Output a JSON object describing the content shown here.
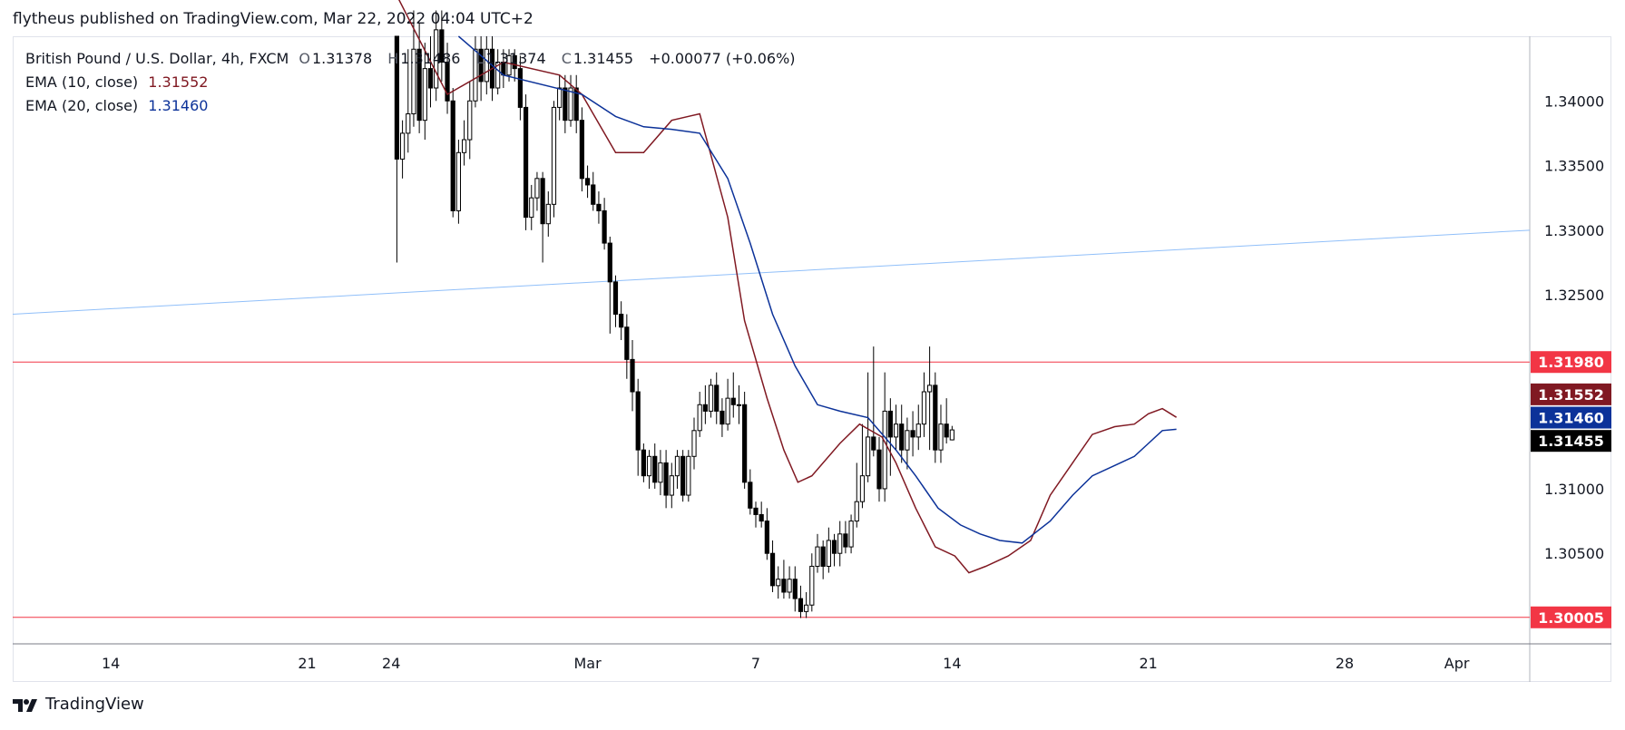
{
  "header": {
    "publisher_line": "flytheus published on TradingView.com, Mar 22, 2022 04:04 UTC+2"
  },
  "legend": {
    "symbol": "British Pound / U.S. Dollar, 4h, FXCM",
    "o_label": "O",
    "o_value": "1.31378",
    "h_label": "H",
    "h_value": "1.31486",
    "l_label": "L",
    "l_value": "1.31374",
    "c_label": "C",
    "c_value": "1.31455",
    "change": "+0.00077 (+0.06%)",
    "ema10_label": "EMA (10, close)",
    "ema10_value": "1.31552",
    "ema20_label": "EMA (20, close)",
    "ema20_value": "1.31460"
  },
  "footer": {
    "brand": "TradingView"
  },
  "colors": {
    "ema10": "#801922",
    "ema20": "#0c3299",
    "hline": "#f23645",
    "trendline": "#90bff9",
    "price_tag": "#000000"
  },
  "chart_data": {
    "type": "candlestick",
    "title": "British Pound / U.S. Dollar, 4h, FXCM",
    "ylim": [
      1.298,
      1.345
    ],
    "y_ticks": [
      "1.34000",
      "1.33500",
      "1.33000",
      "1.32500",
      "1.31000",
      "1.30500"
    ],
    "x_ticks": [
      {
        "label": "14",
        "day": -16
      },
      {
        "label": "21",
        "day": -9
      },
      {
        "label": "24",
        "day": -6
      },
      {
        "label": "Mar",
        "day": 1
      },
      {
        "label": "7",
        "day": 7
      },
      {
        "label": "14",
        "day": 14
      },
      {
        "label": "21",
        "day": 21
      },
      {
        "label": "28",
        "day": 28
      },
      {
        "label": "Apr",
        "day": 32
      }
    ],
    "xlim_days": [
      -19.5,
      34.6
    ],
    "horizontal_lines": [
      {
        "name": "resistance",
        "value": 1.3198,
        "label": "1.31980"
      },
      {
        "name": "support",
        "value": 1.30005,
        "label": "1.30005"
      }
    ],
    "trendline": {
      "start": {
        "day": -19.5,
        "value": 1.3235
      },
      "end": {
        "day": 34.6,
        "value": 1.33
      }
    },
    "price_tags": [
      {
        "name": "ema10-tag",
        "label": "1.31552",
        "color_key": "ema10"
      },
      {
        "name": "ema20-tag",
        "label": "1.31460",
        "color_key": "ema20"
      },
      {
        "name": "last-price-tag",
        "label": "1.31455",
        "color_key": "price_tag"
      }
    ],
    "series": [
      {
        "name": "EMA (10, close)",
        "values_by_day": [
          [
            -6.0,
            1.349
          ],
          [
            -4,
            1.3405
          ],
          [
            -2,
            1.343
          ],
          [
            0,
            1.342
          ],
          [
            0.8,
            1.3405
          ],
          [
            2,
            1.336
          ],
          [
            3,
            1.336
          ],
          [
            4,
            1.3385
          ],
          [
            5,
            1.339
          ],
          [
            6,
            1.331
          ],
          [
            6.6,
            1.323
          ],
          [
            7.4,
            1.317
          ],
          [
            8.0,
            1.313
          ],
          [
            8.5,
            1.3105
          ],
          [
            9,
            1.311
          ],
          [
            10,
            1.3135
          ],
          [
            10.7,
            1.315
          ],
          [
            11.5,
            1.314
          ],
          [
            12,
            1.312
          ],
          [
            12.7,
            1.3085
          ],
          [
            13.4,
            1.3055
          ],
          [
            14.1,
            1.3048
          ],
          [
            14.6,
            1.3035
          ],
          [
            15.2,
            1.304
          ],
          [
            16,
            1.3048
          ],
          [
            16.8,
            1.306
          ],
          [
            17.5,
            1.3095
          ],
          [
            18.3,
            1.312
          ],
          [
            19,
            1.3142
          ],
          [
            19.8,
            1.3148
          ],
          [
            20.5,
            1.315
          ],
          [
            21,
            1.3158
          ],
          [
            21.5,
            1.3162
          ],
          [
            22,
            1.31552
          ]
        ]
      },
      {
        "name": "EMA (20, close)",
        "values_by_day": [
          [
            -3.6,
            1.345
          ],
          [
            -2,
            1.342
          ],
          [
            0.8,
            1.3405
          ],
          [
            2,
            1.3388
          ],
          [
            3,
            1.338
          ],
          [
            4,
            1.3378
          ],
          [
            5,
            1.3375
          ],
          [
            6,
            1.334
          ],
          [
            6.8,
            1.329
          ],
          [
            7.6,
            1.3235
          ],
          [
            8.4,
            1.3195
          ],
          [
            9.2,
            1.3165
          ],
          [
            10,
            1.316
          ],
          [
            11,
            1.3155
          ],
          [
            12,
            1.313
          ],
          [
            12.7,
            1.311
          ],
          [
            13.5,
            1.3085
          ],
          [
            14.3,
            1.3072
          ],
          [
            15,
            1.3065
          ],
          [
            15.7,
            1.306
          ],
          [
            16.5,
            1.3058
          ],
          [
            17.5,
            1.3075
          ],
          [
            18.3,
            1.3095
          ],
          [
            19,
            1.311
          ],
          [
            19.8,
            1.3118
          ],
          [
            20.5,
            1.3125
          ],
          [
            21,
            1.3135
          ],
          [
            21.5,
            1.3145
          ],
          [
            22,
            1.3146
          ]
        ]
      }
    ],
    "candles": [
      [
        -5.8,
        1.345,
        1.3355,
        1.345,
        1.3275
      ],
      [
        -5.6,
        1.3355,
        1.3375,
        1.3385,
        1.334
      ],
      [
        -5.4,
        1.3375,
        1.339,
        1.344,
        1.336
      ],
      [
        -5.2,
        1.339,
        1.344,
        1.347,
        1.338
      ],
      [
        -5.0,
        1.344,
        1.3385,
        1.346,
        1.3375
      ],
      [
        -4.8,
        1.3385,
        1.3425,
        1.3445,
        1.337
      ],
      [
        -4.6,
        1.3425,
        1.341,
        1.345,
        1.3395
      ],
      [
        -4.4,
        1.341,
        1.3455,
        1.347,
        1.34
      ],
      [
        -4.2,
        1.3455,
        1.343,
        1.347,
        1.3415
      ],
      [
        -4.0,
        1.343,
        1.34,
        1.3445,
        1.339
      ],
      [
        -3.8,
        1.34,
        1.3315,
        1.341,
        1.331
      ],
      [
        -3.6,
        1.3315,
        1.336,
        1.337,
        1.3305
      ],
      [
        -3.4,
        1.336,
        1.337,
        1.3385,
        1.335
      ],
      [
        -3.2,
        1.337,
        1.34,
        1.3415,
        1.3355
      ],
      [
        -3.0,
        1.34,
        1.344,
        1.345,
        1.3395
      ],
      [
        -2.8,
        1.344,
        1.3415,
        1.345,
        1.34
      ],
      [
        -2.6,
        1.3415,
        1.344,
        1.345,
        1.3405
      ],
      [
        -2.4,
        1.344,
        1.341,
        1.345,
        1.34
      ],
      [
        -2.2,
        1.341,
        1.343,
        1.344,
        1.3405
      ],
      [
        -2.0,
        1.343,
        1.342,
        1.344,
        1.341
      ],
      [
        -1.8,
        1.342,
        1.3435,
        1.344,
        1.3415
      ],
      [
        -1.6,
        1.3435,
        1.3425,
        1.344,
        1.3415
      ],
      [
        -1.4,
        1.3425,
        1.3395,
        1.3435,
        1.3385
      ],
      [
        -1.2,
        1.3395,
        1.331,
        1.3405,
        1.33
      ],
      [
        -1.0,
        1.331,
        1.3325,
        1.3335,
        1.33
      ],
      [
        -0.8,
        1.3325,
        1.334,
        1.3345,
        1.3315
      ],
      [
        -0.6,
        1.334,
        1.3305,
        1.3345,
        1.3275
      ],
      [
        -0.4,
        1.3305,
        1.332,
        1.333,
        1.3295
      ],
      [
        -0.2,
        1.332,
        1.3395,
        1.34,
        1.331
      ],
      [
        0.0,
        1.3395,
        1.341,
        1.342,
        1.3385
      ],
      [
        0.2,
        1.341,
        1.3385,
        1.342,
        1.3375
      ],
      [
        0.4,
        1.3385,
        1.341,
        1.342,
        1.338
      ],
      [
        0.6,
        1.341,
        1.3385,
        1.342,
        1.3375
      ],
      [
        0.8,
        1.3385,
        1.334,
        1.3395,
        1.333
      ],
      [
        1.0,
        1.334,
        1.3335,
        1.335,
        1.3325
      ],
      [
        1.2,
        1.3335,
        1.332,
        1.3345,
        1.3315
      ],
      [
        1.4,
        1.332,
        1.3315,
        1.333,
        1.3305
      ],
      [
        1.6,
        1.3315,
        1.329,
        1.3325,
        1.3285
      ],
      [
        1.8,
        1.329,
        1.326,
        1.3295,
        1.322
      ],
      [
        2.0,
        1.326,
        1.3235,
        1.3265,
        1.3225
      ],
      [
        2.2,
        1.3235,
        1.3225,
        1.3245,
        1.3215
      ],
      [
        2.4,
        1.3225,
        1.32,
        1.3235,
        1.3185
      ],
      [
        2.6,
        1.32,
        1.3175,
        1.3215,
        1.316
      ],
      [
        2.8,
        1.3175,
        1.313,
        1.3185,
        1.311
      ],
      [
        3.0,
        1.313,
        1.311,
        1.3135,
        1.3105
      ],
      [
        3.2,
        1.311,
        1.3125,
        1.313,
        1.31
      ],
      [
        3.4,
        1.3125,
        1.3105,
        1.3135,
        1.31
      ],
      [
        3.6,
        1.3105,
        1.312,
        1.313,
        1.3095
      ],
      [
        3.8,
        1.312,
        1.3095,
        1.313,
        1.3085
      ],
      [
        4.0,
        1.3095,
        1.311,
        1.312,
        1.3085
      ],
      [
        4.2,
        1.311,
        1.3125,
        1.313,
        1.31
      ],
      [
        4.4,
        1.3125,
        1.3095,
        1.313,
        1.309
      ],
      [
        4.6,
        1.3095,
        1.3125,
        1.313,
        1.309
      ],
      [
        4.8,
        1.3125,
        1.3145,
        1.3155,
        1.3115
      ],
      [
        5.0,
        1.3145,
        1.3165,
        1.3175,
        1.314
      ],
      [
        5.2,
        1.3165,
        1.316,
        1.318,
        1.315
      ],
      [
        5.4,
        1.316,
        1.318,
        1.3185,
        1.3155
      ],
      [
        5.6,
        1.318,
        1.316,
        1.319,
        1.315
      ],
      [
        5.8,
        1.316,
        1.315,
        1.317,
        1.314
      ],
      [
        6.0,
        1.315,
        1.317,
        1.3185,
        1.3145
      ],
      [
        6.2,
        1.317,
        1.3165,
        1.319,
        1.3155
      ],
      [
        6.4,
        1.3165,
        1.3165,
        1.318,
        1.315
      ],
      [
        6.6,
        1.3165,
        1.3105,
        1.3175,
        1.31
      ],
      [
        6.8,
        1.3105,
        1.3085,
        1.3115,
        1.308
      ],
      [
        7.0,
        1.3085,
        1.308,
        1.309,
        1.307
      ],
      [
        7.2,
        1.308,
        1.3075,
        1.309,
        1.307
      ],
      [
        7.4,
        1.3075,
        1.305,
        1.3085,
        1.3045
      ],
      [
        7.6,
        1.305,
        1.3025,
        1.306,
        1.302
      ],
      [
        7.8,
        1.3025,
        1.303,
        1.304,
        1.3015
      ],
      [
        8.0,
        1.303,
        1.302,
        1.3045,
        1.3015
      ],
      [
        8.2,
        1.302,
        1.303,
        1.304,
        1.3015
      ],
      [
        8.4,
        1.303,
        1.3015,
        1.304,
        1.3005
      ],
      [
        8.6,
        1.3015,
        1.3005,
        1.3025,
        1.3
      ],
      [
        8.8,
        1.3005,
        1.301,
        1.302,
        1.3
      ],
      [
        9.0,
        1.301,
        1.304,
        1.305,
        1.3005
      ],
      [
        9.2,
        1.304,
        1.3055,
        1.3065,
        1.3035
      ],
      [
        9.4,
        1.3055,
        1.304,
        1.306,
        1.303
      ],
      [
        9.6,
        1.304,
        1.306,
        1.307,
        1.3035
      ],
      [
        9.8,
        1.306,
        1.305,
        1.3065,
        1.304
      ],
      [
        10.0,
        1.305,
        1.3065,
        1.3075,
        1.304
      ],
      [
        10.2,
        1.3065,
        1.3055,
        1.3075,
        1.305
      ],
      [
        10.4,
        1.3055,
        1.3075,
        1.308,
        1.305
      ],
      [
        10.6,
        1.3075,
        1.309,
        1.312,
        1.307
      ],
      [
        10.8,
        1.309,
        1.311,
        1.315,
        1.3085
      ],
      [
        11.0,
        1.311,
        1.314,
        1.319,
        1.3105
      ],
      [
        11.2,
        1.314,
        1.313,
        1.321,
        1.3125
      ],
      [
        11.4,
        1.313,
        1.31,
        1.314,
        1.309
      ],
      [
        11.6,
        1.31,
        1.316,
        1.319,
        1.309
      ],
      [
        11.8,
        1.316,
        1.314,
        1.317,
        1.311
      ],
      [
        12.0,
        1.314,
        1.315,
        1.3165,
        1.313
      ],
      [
        12.2,
        1.315,
        1.313,
        1.3165,
        1.312
      ],
      [
        12.4,
        1.313,
        1.3145,
        1.3155,
        1.3115
      ],
      [
        12.6,
        1.3145,
        1.314,
        1.316,
        1.3125
      ],
      [
        12.8,
        1.314,
        1.315,
        1.3165,
        1.313
      ],
      [
        13.0,
        1.315,
        1.3175,
        1.319,
        1.314
      ],
      [
        13.2,
        1.3175,
        1.318,
        1.321,
        1.313
      ],
      [
        13.4,
        1.318,
        1.313,
        1.319,
        1.312
      ],
      [
        13.6,
        1.313,
        1.315,
        1.3165,
        1.312
      ],
      [
        13.8,
        1.315,
        1.314,
        1.317,
        1.3135
      ],
      [
        14.0,
        1.31378,
        1.31455,
        1.31486,
        1.31374
      ]
    ]
  }
}
